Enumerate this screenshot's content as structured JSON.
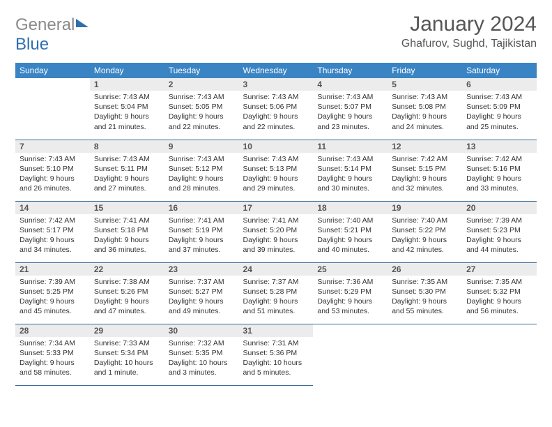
{
  "brand": {
    "part1": "General",
    "part2": "Blue"
  },
  "title": "January 2024",
  "location": "Ghafurov, Sughd, Tajikistan",
  "weekdays": [
    "Sunday",
    "Monday",
    "Tuesday",
    "Wednesday",
    "Thursday",
    "Friday",
    "Saturday"
  ],
  "colors": {
    "header_bg": "#3a84c4",
    "header_text": "#ffffff",
    "daynum_bg": "#ececec",
    "rule": "#3a6a9a",
    "logo_gray": "#8a8a8a",
    "logo_blue": "#2f6fb0",
    "body_text": "#333333",
    "page_bg": "#ffffff"
  },
  "weeks": [
    [
      {
        "n": "",
        "sr": "",
        "ss": "",
        "d1": "",
        "d2": ""
      },
      {
        "n": "1",
        "sr": "Sunrise: 7:43 AM",
        "ss": "Sunset: 5:04 PM",
        "d1": "Daylight: 9 hours",
        "d2": "and 21 minutes."
      },
      {
        "n": "2",
        "sr": "Sunrise: 7:43 AM",
        "ss": "Sunset: 5:05 PM",
        "d1": "Daylight: 9 hours",
        "d2": "and 22 minutes."
      },
      {
        "n": "3",
        "sr": "Sunrise: 7:43 AM",
        "ss": "Sunset: 5:06 PM",
        "d1": "Daylight: 9 hours",
        "d2": "and 22 minutes."
      },
      {
        "n": "4",
        "sr": "Sunrise: 7:43 AM",
        "ss": "Sunset: 5:07 PM",
        "d1": "Daylight: 9 hours",
        "d2": "and 23 minutes."
      },
      {
        "n": "5",
        "sr": "Sunrise: 7:43 AM",
        "ss": "Sunset: 5:08 PM",
        "d1": "Daylight: 9 hours",
        "d2": "and 24 minutes."
      },
      {
        "n": "6",
        "sr": "Sunrise: 7:43 AM",
        "ss": "Sunset: 5:09 PM",
        "d1": "Daylight: 9 hours",
        "d2": "and 25 minutes."
      }
    ],
    [
      {
        "n": "7",
        "sr": "Sunrise: 7:43 AM",
        "ss": "Sunset: 5:10 PM",
        "d1": "Daylight: 9 hours",
        "d2": "and 26 minutes."
      },
      {
        "n": "8",
        "sr": "Sunrise: 7:43 AM",
        "ss": "Sunset: 5:11 PM",
        "d1": "Daylight: 9 hours",
        "d2": "and 27 minutes."
      },
      {
        "n": "9",
        "sr": "Sunrise: 7:43 AM",
        "ss": "Sunset: 5:12 PM",
        "d1": "Daylight: 9 hours",
        "d2": "and 28 minutes."
      },
      {
        "n": "10",
        "sr": "Sunrise: 7:43 AM",
        "ss": "Sunset: 5:13 PM",
        "d1": "Daylight: 9 hours",
        "d2": "and 29 minutes."
      },
      {
        "n": "11",
        "sr": "Sunrise: 7:43 AM",
        "ss": "Sunset: 5:14 PM",
        "d1": "Daylight: 9 hours",
        "d2": "and 30 minutes."
      },
      {
        "n": "12",
        "sr": "Sunrise: 7:42 AM",
        "ss": "Sunset: 5:15 PM",
        "d1": "Daylight: 9 hours",
        "d2": "and 32 minutes."
      },
      {
        "n": "13",
        "sr": "Sunrise: 7:42 AM",
        "ss": "Sunset: 5:16 PM",
        "d1": "Daylight: 9 hours",
        "d2": "and 33 minutes."
      }
    ],
    [
      {
        "n": "14",
        "sr": "Sunrise: 7:42 AM",
        "ss": "Sunset: 5:17 PM",
        "d1": "Daylight: 9 hours",
        "d2": "and 34 minutes."
      },
      {
        "n": "15",
        "sr": "Sunrise: 7:41 AM",
        "ss": "Sunset: 5:18 PM",
        "d1": "Daylight: 9 hours",
        "d2": "and 36 minutes."
      },
      {
        "n": "16",
        "sr": "Sunrise: 7:41 AM",
        "ss": "Sunset: 5:19 PM",
        "d1": "Daylight: 9 hours",
        "d2": "and 37 minutes."
      },
      {
        "n": "17",
        "sr": "Sunrise: 7:41 AM",
        "ss": "Sunset: 5:20 PM",
        "d1": "Daylight: 9 hours",
        "d2": "and 39 minutes."
      },
      {
        "n": "18",
        "sr": "Sunrise: 7:40 AM",
        "ss": "Sunset: 5:21 PM",
        "d1": "Daylight: 9 hours",
        "d2": "and 40 minutes."
      },
      {
        "n": "19",
        "sr": "Sunrise: 7:40 AM",
        "ss": "Sunset: 5:22 PM",
        "d1": "Daylight: 9 hours",
        "d2": "and 42 minutes."
      },
      {
        "n": "20",
        "sr": "Sunrise: 7:39 AM",
        "ss": "Sunset: 5:23 PM",
        "d1": "Daylight: 9 hours",
        "d2": "and 44 minutes."
      }
    ],
    [
      {
        "n": "21",
        "sr": "Sunrise: 7:39 AM",
        "ss": "Sunset: 5:25 PM",
        "d1": "Daylight: 9 hours",
        "d2": "and 45 minutes."
      },
      {
        "n": "22",
        "sr": "Sunrise: 7:38 AM",
        "ss": "Sunset: 5:26 PM",
        "d1": "Daylight: 9 hours",
        "d2": "and 47 minutes."
      },
      {
        "n": "23",
        "sr": "Sunrise: 7:37 AM",
        "ss": "Sunset: 5:27 PM",
        "d1": "Daylight: 9 hours",
        "d2": "and 49 minutes."
      },
      {
        "n": "24",
        "sr": "Sunrise: 7:37 AM",
        "ss": "Sunset: 5:28 PM",
        "d1": "Daylight: 9 hours",
        "d2": "and 51 minutes."
      },
      {
        "n": "25",
        "sr": "Sunrise: 7:36 AM",
        "ss": "Sunset: 5:29 PM",
        "d1": "Daylight: 9 hours",
        "d2": "and 53 minutes."
      },
      {
        "n": "26",
        "sr": "Sunrise: 7:35 AM",
        "ss": "Sunset: 5:30 PM",
        "d1": "Daylight: 9 hours",
        "d2": "and 55 minutes."
      },
      {
        "n": "27",
        "sr": "Sunrise: 7:35 AM",
        "ss": "Sunset: 5:32 PM",
        "d1": "Daylight: 9 hours",
        "d2": "and 56 minutes."
      }
    ],
    [
      {
        "n": "28",
        "sr": "Sunrise: 7:34 AM",
        "ss": "Sunset: 5:33 PM",
        "d1": "Daylight: 9 hours",
        "d2": "and 58 minutes."
      },
      {
        "n": "29",
        "sr": "Sunrise: 7:33 AM",
        "ss": "Sunset: 5:34 PM",
        "d1": "Daylight: 10 hours",
        "d2": "and 1 minute."
      },
      {
        "n": "30",
        "sr": "Sunrise: 7:32 AM",
        "ss": "Sunset: 5:35 PM",
        "d1": "Daylight: 10 hours",
        "d2": "and 3 minutes."
      },
      {
        "n": "31",
        "sr": "Sunrise: 7:31 AM",
        "ss": "Sunset: 5:36 PM",
        "d1": "Daylight: 10 hours",
        "d2": "and 5 minutes."
      },
      {
        "n": "",
        "sr": "",
        "ss": "",
        "d1": "",
        "d2": ""
      },
      {
        "n": "",
        "sr": "",
        "ss": "",
        "d1": "",
        "d2": ""
      },
      {
        "n": "",
        "sr": "",
        "ss": "",
        "d1": "",
        "d2": ""
      }
    ]
  ]
}
